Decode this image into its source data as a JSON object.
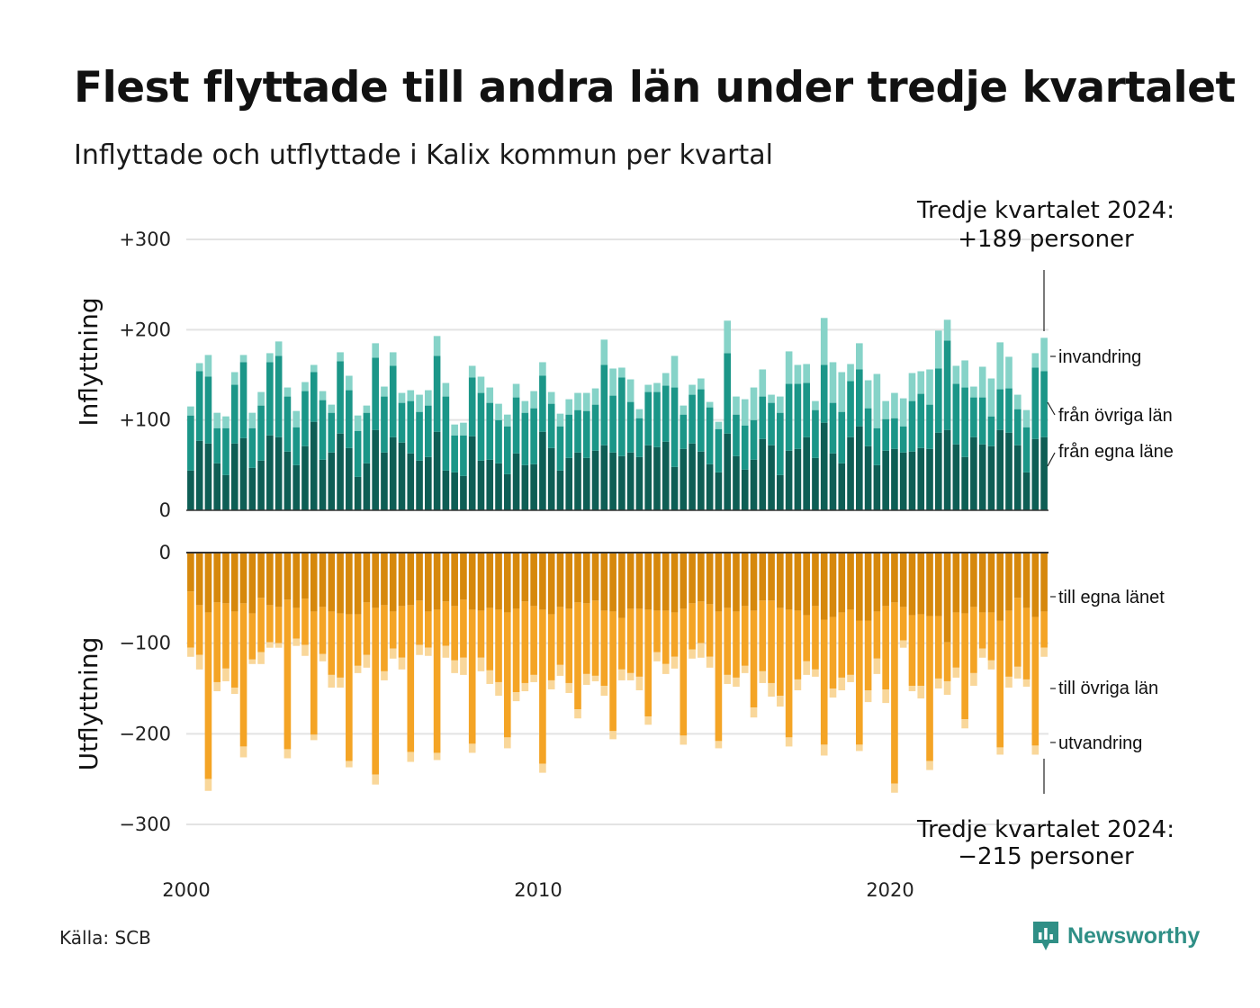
{
  "title": "Flest flyttade till andra län under tredje kvartalet",
  "subtitle": "Inflyttade och utflyttade i Kalix kommun per kvartal",
  "source": "Källa: SCB",
  "brand": "Newsworthy",
  "colors": {
    "in_own": "#0e5e55",
    "in_other": "#1b9688",
    "in_immig": "#86d3c8",
    "out_own": "#d6880c",
    "out_other": "#f4a425",
    "out_emig": "#f9d79a",
    "grid": "#e3e3e3",
    "baseline": "#333333"
  },
  "callout_top": {
    "line1": "Tredje kvartalet 2024:",
    "line2": "+189 personer"
  },
  "callout_bottom": {
    "line1": "Tredje kvartalet 2024:",
    "line2": "−215 personer"
  },
  "chart_data": [
    {
      "type": "bar",
      "stacked": true,
      "ylabel": "Inflyttning",
      "ylim": [
        0,
        300
      ],
      "yticks": [
        {
          "value": 0,
          "label": "0"
        },
        {
          "value": 100,
          "label": "+100"
        },
        {
          "value": 200,
          "label": "+200"
        },
        {
          "value": 300,
          "label": "+300"
        }
      ],
      "x_start": 2000.0,
      "x_step": 0.25,
      "x_ticks": [
        {
          "value": 2000,
          "label": "2000"
        },
        {
          "value": 2010,
          "label": "2010"
        },
        {
          "value": 2020,
          "label": "2020"
        }
      ],
      "series": [
        {
          "name": "från egna läne",
          "color_key": "in_own",
          "values": [
            44,
            77,
            74,
            52,
            39,
            74,
            80,
            47,
            55,
            83,
            81,
            65,
            50,
            71,
            98,
            56,
            64,
            85,
            69,
            37,
            52,
            89,
            64,
            81,
            75,
            63,
            55,
            59,
            87,
            44,
            42,
            38,
            82,
            55,
            56,
            52,
            40,
            63,
            50,
            51,
            87,
            69,
            44,
            58,
            64,
            58,
            66,
            72,
            64,
            60,
            64,
            59,
            72,
            70,
            76,
            48,
            68,
            74,
            65,
            51,
            42,
            85,
            60,
            45,
            56,
            79,
            72,
            39,
            66,
            68,
            81,
            58,
            97,
            63,
            52,
            81,
            93,
            71,
            50,
            66,
            68,
            64,
            65,
            69,
            68,
            86,
            89,
            73,
            59,
            81,
            73,
            71,
            89,
            86,
            72,
            42,
            79,
            81
          ]
        },
        {
          "name": "från övriga län",
          "color_key": "in_other",
          "values": [
            61,
            77,
            74,
            39,
            52,
            65,
            84,
            44,
            61,
            81,
            90,
            61,
            42,
            61,
            55,
            66,
            44,
            80,
            64,
            51,
            56,
            80,
            62,
            79,
            44,
            58,
            54,
            57,
            84,
            82,
            41,
            45,
            65,
            75,
            63,
            48,
            53,
            62,
            58,
            62,
            62,
            49,
            49,
            48,
            47,
            52,
            51,
            89,
            63,
            87,
            56,
            43,
            59,
            61,
            62,
            88,
            38,
            54,
            69,
            63,
            48,
            89,
            46,
            49,
            44,
            47,
            47,
            69,
            74,
            72,
            60,
            53,
            64,
            56,
            57,
            62,
            63,
            42,
            41,
            35,
            34,
            29,
            56,
            60,
            49,
            71,
            99,
            67,
            77,
            44,
            52,
            33,
            45,
            49,
            40,
            50,
            79,
            73
          ]
        },
        {
          "name": "invandring",
          "color_key": "in_immig",
          "values": [
            10,
            9,
            24,
            17,
            13,
            14,
            8,
            17,
            15,
            10,
            16,
            10,
            18,
            10,
            8,
            10,
            9,
            10,
            16,
            17,
            8,
            16,
            11,
            15,
            11,
            12,
            19,
            17,
            22,
            15,
            12,
            14,
            13,
            18,
            17,
            18,
            13,
            15,
            13,
            19,
            15,
            13,
            14,
            17,
            19,
            20,
            18,
            28,
            30,
            11,
            25,
            10,
            8,
            10,
            14,
            35,
            10,
            11,
            12,
            6,
            8,
            36,
            20,
            29,
            36,
            30,
            9,
            18,
            36,
            21,
            21,
            10,
            52,
            45,
            44,
            19,
            29,
            31,
            60,
            20,
            28,
            31,
            31,
            25,
            39,
            42,
            23,
            20,
            30,
            12,
            34,
            42,
            52,
            35,
            16,
            19,
            16,
            37
          ]
        }
      ]
    },
    {
      "type": "bar",
      "stacked": true,
      "ylabel": "Utflyttning",
      "ylim": [
        -300,
        0
      ],
      "yticks": [
        {
          "value": 0,
          "label": "0"
        },
        {
          "value": -100,
          "label": "−100"
        },
        {
          "value": -200,
          "label": "−200"
        },
        {
          "value": -300,
          "label": "−300"
        }
      ],
      "x_start": 2000.0,
      "x_step": 0.25,
      "series": [
        {
          "name": "till egna länet",
          "color_key": "out_own",
          "values": [
            -43,
            -58,
            -66,
            -55,
            -56,
            -65,
            -56,
            -67,
            -50,
            -58,
            -60,
            -52,
            -61,
            -51,
            -65,
            -60,
            -65,
            -67,
            -68,
            -68,
            -55,
            -61,
            -58,
            -65,
            -59,
            -58,
            -53,
            -65,
            -63,
            -54,
            -59,
            -52,
            -63,
            -64,
            -61,
            -63,
            -66,
            -62,
            -54,
            -59,
            -63,
            -68,
            -60,
            -62,
            -55,
            -56,
            -53,
            -64,
            -65,
            -72,
            -62,
            -62,
            -63,
            -64,
            -64,
            -66,
            -62,
            -56,
            -54,
            -57,
            -65,
            -61,
            -65,
            -59,
            -64,
            -53,
            -53,
            -61,
            -63,
            -64,
            -69,
            -59,
            -74,
            -71,
            -66,
            -63,
            -75,
            -75,
            -65,
            -59,
            -55,
            -60,
            -69,
            -68,
            -70,
            -70,
            -99,
            -66,
            -67,
            -60,
            -66,
            -66,
            -75,
            -64,
            -50,
            -61,
            -71,
            -65
          ]
        },
        {
          "name": "till övriga län",
          "color_key": "out_other",
          "values": [
            -62,
            -55,
            -184,
            -88,
            -72,
            -84,
            -158,
            -51,
            -60,
            -41,
            -40,
            -165,
            -34,
            -51,
            -136,
            -52,
            -70,
            -71,
            -162,
            -57,
            -58,
            -184,
            -73,
            -41,
            -57,
            -162,
            -49,
            -40,
            -158,
            -49,
            -60,
            -64,
            -148,
            -52,
            -69,
            -80,
            -138,
            -92,
            -90,
            -76,
            -170,
            -73,
            -64,
            -82,
            -118,
            -78,
            -83,
            -83,
            -132,
            -57,
            -71,
            -75,
            -118,
            -46,
            -59,
            -49,
            -140,
            -51,
            -46,
            -58,
            -143,
            -74,
            -73,
            -66,
            -107,
            -78,
            -91,
            -97,
            -141,
            -76,
            -51,
            -70,
            -138,
            -79,
            -72,
            -72,
            -137,
            -77,
            -52,
            -92,
            -200,
            -37,
            -78,
            -79,
            -160,
            -69,
            -43,
            -61,
            -117,
            -73,
            -40,
            -53,
            -140,
            -73,
            -76,
            -79,
            -142,
            -40
          ]
        },
        {
          "name": "utvandring",
          "color_key": "out_emig",
          "values": [
            -10,
            -16,
            -13,
            -10,
            -14,
            -7,
            -12,
            -5,
            -13,
            -6,
            -5,
            -10,
            -8,
            -12,
            -6,
            -8,
            -14,
            -11,
            -7,
            -8,
            -14,
            -11,
            -10,
            -11,
            -13,
            -11,
            -11,
            -9,
            -8,
            -13,
            -14,
            -19,
            -10,
            -15,
            -15,
            -15,
            -12,
            -10,
            -9,
            -8,
            -10,
            -10,
            -12,
            -11,
            -10,
            -12,
            -6,
            -11,
            -9,
            -12,
            -8,
            -15,
            -9,
            -10,
            -11,
            -13,
            -10,
            -10,
            -16,
            -12,
            -8,
            -10,
            -10,
            -8,
            -11,
            -13,
            -15,
            -12,
            -10,
            -12,
            -15,
            -8,
            -12,
            -10,
            -14,
            -8,
            -7,
            -13,
            -17,
            -15,
            -10,
            -8,
            -6,
            -14,
            -10,
            -11,
            -15,
            -11,
            -10,
            -14,
            -10,
            -10,
            -8,
            -12,
            -13,
            -8,
            -10,
            -10
          ]
        }
      ]
    }
  ]
}
